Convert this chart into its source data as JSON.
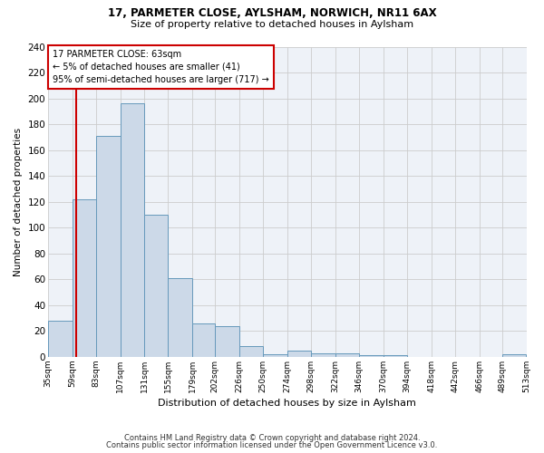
{
  "title1": "17, PARMETER CLOSE, AYLSHAM, NORWICH, NR11 6AX",
  "title2": "Size of property relative to detached houses in Aylsham",
  "xlabel": "Distribution of detached houses by size in Aylsham",
  "ylabel": "Number of detached properties",
  "bin_edges": [
    35,
    59,
    83,
    107,
    131,
    155,
    179,
    202,
    226,
    250,
    274,
    298,
    322,
    346,
    370,
    394,
    418,
    442,
    466,
    489,
    513
  ],
  "bar_heights": [
    28,
    122,
    171,
    196,
    110,
    61,
    26,
    24,
    8,
    2,
    5,
    3,
    3,
    1,
    1,
    0,
    0,
    0,
    0,
    2
  ],
  "bar_color": "#ccd9e8",
  "bar_edge_color": "#6699bb",
  "vline_x": 63,
  "vline_color": "#cc0000",
  "annotation_line1": "17 PARMETER CLOSE: 63sqm",
  "annotation_line2": "← 5% of detached houses are smaller (41)",
  "annotation_line3": "95% of semi-detached houses are larger (717) →",
  "annotation_box_color": "#cc0000",
  "ylim": [
    0,
    240
  ],
  "yticks": [
    0,
    20,
    40,
    60,
    80,
    100,
    120,
    140,
    160,
    180,
    200,
    220,
    240
  ],
  "grid_color": "#cccccc",
  "bg_color": "#eef2f8",
  "footnote1": "Contains HM Land Registry data © Crown copyright and database right 2024.",
  "footnote2": "Contains public sector information licensed under the Open Government Licence v3.0.",
  "tick_labels": [
    "35sqm",
    "59sqm",
    "83sqm",
    "107sqm",
    "131sqm",
    "155sqm",
    "179sqm",
    "202sqm",
    "226sqm",
    "250sqm",
    "274sqm",
    "298sqm",
    "322sqm",
    "346sqm",
    "370sqm",
    "394sqm",
    "418sqm",
    "442sqm",
    "466sqm",
    "489sqm",
    "513sqm"
  ]
}
